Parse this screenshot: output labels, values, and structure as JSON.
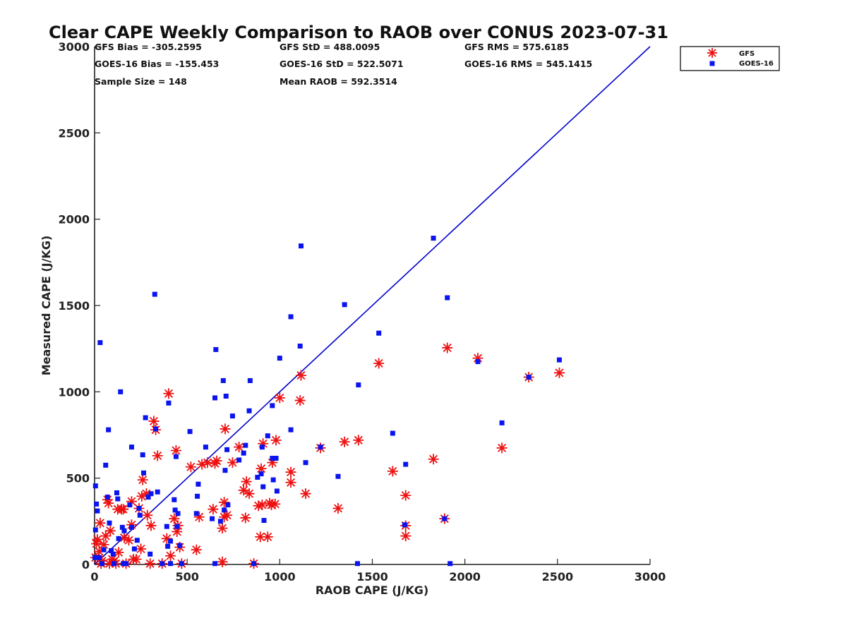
{
  "chart_data": {
    "type": "scatter",
    "title": "Clear CAPE Weekly Comparison to RAOB over CONUS 2023-07-31",
    "xlabel": "RAOB CAPE (J/KG)",
    "ylabel": "Measured CAPE (J/KG)",
    "xlim": [
      0,
      3000
    ],
    "ylim": [
      0,
      3000
    ],
    "xticks": [
      "0",
      "500",
      "1000",
      "1500",
      "2000",
      "2500",
      "3000"
    ],
    "yticks": [
      "0",
      "500",
      "1000",
      "1500",
      "2000",
      "2500",
      "3000"
    ],
    "grid": false,
    "legend_position": "top-right",
    "stats": [
      [
        "GFS Bias = -305.2595",
        "GFS StD = 488.0095",
        "GFS RMS = 575.6185"
      ],
      [
        "GOES-16 Bias = -155.453",
        "GOES-16 StD = 522.5071",
        "GOES-16 RMS = 545.1415"
      ],
      [
        "Sample Size = 148",
        "Mean RAOB = 592.3514",
        ""
      ]
    ],
    "reference_line": {
      "x": [
        0,
        3000
      ],
      "y": [
        0,
        3000
      ],
      "color": "#0000cc"
    },
    "series": [
      {
        "name": "GFS",
        "marker": "asterisk",
        "color": "#ee1111",
        "points": [
          [
            2510,
            1110
          ],
          [
            2345,
            1085
          ],
          [
            2200,
            675
          ],
          [
            2070,
            1195
          ],
          [
            1905,
            1255
          ],
          [
            1890,
            265
          ],
          [
            1830,
            610
          ],
          [
            1680,
            400
          ],
          [
            1680,
            225
          ],
          [
            1680,
            165
          ],
          [
            1610,
            540
          ],
          [
            1535,
            1165
          ],
          [
            1425,
            720
          ],
          [
            1350,
            710
          ],
          [
            1315,
            325
          ],
          [
            1220,
            675
          ],
          [
            1140,
            410
          ],
          [
            1115,
            1095
          ],
          [
            1110,
            950
          ],
          [
            1060,
            535
          ],
          [
            1060,
            475
          ],
          [
            1000,
            965
          ],
          [
            980,
            720
          ],
          [
            975,
            350
          ],
          [
            960,
            590
          ],
          [
            955,
            345
          ],
          [
            945,
            355
          ],
          [
            935,
            160
          ],
          [
            910,
            700
          ],
          [
            905,
            345
          ],
          [
            900,
            555
          ],
          [
            895,
            160
          ],
          [
            885,
            340
          ],
          [
            860,
            5
          ],
          [
            835,
            410
          ],
          [
            820,
            480
          ],
          [
            815,
            270
          ],
          [
            805,
            430
          ],
          [
            780,
            680
          ],
          [
            745,
            590
          ],
          [
            715,
            285
          ],
          [
            705,
            785
          ],
          [
            700,
            360
          ],
          [
            700,
            275
          ],
          [
            690,
            210
          ],
          [
            690,
            15
          ],
          [
            660,
            600
          ],
          [
            650,
            585
          ],
          [
            640,
            320
          ],
          [
            610,
            590
          ],
          [
            580,
            580
          ],
          [
            565,
            275
          ],
          [
            550,
            85
          ],
          [
            520,
            565
          ],
          [
            470,
            5
          ],
          [
            460,
            100
          ],
          [
            450,
            225
          ],
          [
            445,
            190
          ],
          [
            440,
            660
          ],
          [
            430,
            265
          ],
          [
            410,
            50
          ],
          [
            400,
            990
          ],
          [
            390,
            150
          ],
          [
            365,
            5
          ],
          [
            340,
            630
          ],
          [
            330,
            780
          ],
          [
            320,
            830
          ],
          [
            305,
            225
          ],
          [
            300,
            5
          ],
          [
            285,
            285
          ],
          [
            280,
            410
          ],
          [
            260,
            490
          ],
          [
            255,
            395
          ],
          [
            250,
            90
          ],
          [
            240,
            325
          ],
          [
            225,
            30
          ],
          [
            210,
            30
          ],
          [
            200,
            365
          ],
          [
            200,
            230
          ],
          [
            185,
            140
          ],
          [
            170,
            5
          ],
          [
            160,
            155
          ],
          [
            155,
            320
          ],
          [
            145,
            320
          ],
          [
            130,
            70
          ],
          [
            125,
            320
          ],
          [
            115,
            5
          ],
          [
            105,
            20
          ],
          [
            95,
            30
          ],
          [
            85,
            195
          ],
          [
            80,
            5
          ],
          [
            75,
            355
          ],
          [
            70,
            375
          ],
          [
            60,
            165
          ],
          [
            50,
            115
          ],
          [
            40,
            20
          ],
          [
            35,
            5
          ],
          [
            30,
            240
          ],
          [
            25,
            75
          ],
          [
            15,
            145
          ],
          [
            10,
            120
          ],
          [
            5,
            40
          ]
        ]
      },
      {
        "name": "GOES-16",
        "marker": "square",
        "color": "#0a14ee",
        "points": [
          [
            2510,
            1185
          ],
          [
            2345,
            1085
          ],
          [
            2200,
            820
          ],
          [
            2070,
            1175
          ],
          [
            1905,
            1545
          ],
          [
            1890,
            265
          ],
          [
            1830,
            1890
          ],
          [
            1920,
            5
          ],
          [
            1680,
            580
          ],
          [
            1675,
            230
          ],
          [
            1610,
            760
          ],
          [
            1535,
            1340
          ],
          [
            1425,
            1040
          ],
          [
            1420,
            5
          ],
          [
            1350,
            1505
          ],
          [
            1315,
            510
          ],
          [
            1220,
            680
          ],
          [
            1140,
            590
          ],
          [
            1115,
            1845
          ],
          [
            1110,
            1265
          ],
          [
            1060,
            1435
          ],
          [
            1060,
            780
          ],
          [
            1000,
            1195
          ],
          [
            985,
            425
          ],
          [
            980,
            615
          ],
          [
            965,
            490
          ],
          [
            960,
            615
          ],
          [
            960,
            920
          ],
          [
            935,
            745
          ],
          [
            915,
            255
          ],
          [
            910,
            450
          ],
          [
            905,
            680
          ],
          [
            900,
            525
          ],
          [
            880,
            505
          ],
          [
            860,
            5
          ],
          [
            840,
            1065
          ],
          [
            835,
            890
          ],
          [
            815,
            690
          ],
          [
            805,
            645
          ],
          [
            780,
            605
          ],
          [
            745,
            860
          ],
          [
            720,
            345
          ],
          [
            715,
            665
          ],
          [
            710,
            975
          ],
          [
            705,
            545
          ],
          [
            700,
            315
          ],
          [
            695,
            1065
          ],
          [
            680,
            250
          ],
          [
            655,
            1245
          ],
          [
            650,
            965
          ],
          [
            650,
            5
          ],
          [
            635,
            265
          ],
          [
            600,
            680
          ],
          [
            560,
            465
          ],
          [
            555,
            395
          ],
          [
            550,
            295
          ],
          [
            515,
            770
          ],
          [
            470,
            5
          ],
          [
            460,
            110
          ],
          [
            445,
            220
          ],
          [
            450,
            295
          ],
          [
            440,
            625
          ],
          [
            435,
            315
          ],
          [
            430,
            375
          ],
          [
            410,
            5
          ],
          [
            400,
            935
          ],
          [
            390,
            220
          ],
          [
            410,
            135
          ],
          [
            395,
            105
          ],
          [
            365,
            5
          ],
          [
            340,
            420
          ],
          [
            330,
            785
          ],
          [
            325,
            1565
          ],
          [
            305,
            410
          ],
          [
            300,
            60
          ],
          [
            290,
            390
          ],
          [
            275,
            850
          ],
          [
            265,
            530
          ],
          [
            260,
            635
          ],
          [
            245,
            285
          ],
          [
            240,
            325
          ],
          [
            230,
            140
          ],
          [
            215,
            90
          ],
          [
            200,
            680
          ],
          [
            200,
            215
          ],
          [
            190,
            345
          ],
          [
            170,
            5
          ],
          [
            160,
            195
          ],
          [
            155,
            5
          ],
          [
            150,
            215
          ],
          [
            140,
            1000
          ],
          [
            130,
            150
          ],
          [
            125,
            380
          ],
          [
            120,
            415
          ],
          [
            105,
            5
          ],
          [
            100,
            60
          ],
          [
            90,
            80
          ],
          [
            80,
            240
          ],
          [
            75,
            780
          ],
          [
            70,
            390
          ],
          [
            60,
            575
          ],
          [
            50,
            85
          ],
          [
            40,
            5
          ],
          [
            30,
            1285
          ],
          [
            25,
            40
          ],
          [
            15,
            310
          ],
          [
            10,
            350
          ],
          [
            5,
            200
          ],
          [
            5,
            455
          ],
          [
            2,
            40
          ]
        ]
      }
    ]
  }
}
